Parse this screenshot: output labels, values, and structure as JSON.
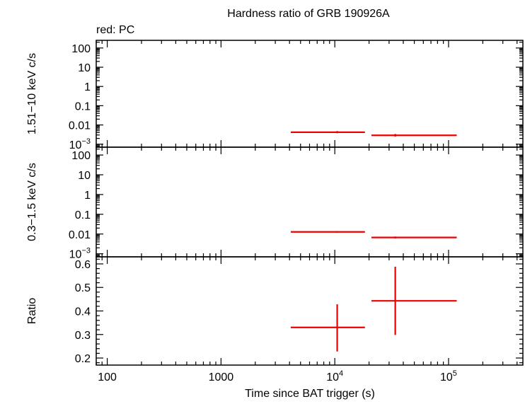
{
  "title": "Hardness ratio of GRB 190926A",
  "legend_note": "red: PC",
  "xlabel": "Time since BAT trigger (s)",
  "colors": {
    "data": "#ee0000",
    "axes": "#000000",
    "background": "#ffffff"
  },
  "chart_data": [
    {
      "type": "scatter",
      "panel": "top",
      "ylabel": "1.51−10 keV c/s",
      "xscale": "log",
      "yscale": "log",
      "xlim": [
        80,
        450000
      ],
      "ylim": [
        0.0007,
        250
      ],
      "y_ticks": [
        {
          "value": 100,
          "label": "100"
        },
        {
          "value": 10,
          "label": "10"
        },
        {
          "value": 1,
          "label": "1"
        },
        {
          "value": 0.1,
          "label": "0.1"
        },
        {
          "value": 0.01,
          "label": "0.01"
        },
        {
          "value": 0.001,
          "label": "10",
          "sup": "−3"
        }
      ],
      "series": [
        {
          "color": "#ee0000",
          "points": [
            {
              "x": 10500,
              "x_lo": 4100,
              "x_hi": 18400,
              "y": 0.0042,
              "y_lo": 0.0037,
              "y_hi": 0.0048
            },
            {
              "x": 34000,
              "x_lo": 21000,
              "x_hi": 118000,
              "y": 0.0029,
              "y_lo": 0.0025,
              "y_hi": 0.0034
            }
          ]
        }
      ]
    },
    {
      "type": "scatter",
      "panel": "middle",
      "ylabel": "0.3−1.5 keV c/s",
      "xscale": "log",
      "yscale": "log",
      "xlim": [
        80,
        450000
      ],
      "ylim": [
        0.0007,
        250
      ],
      "y_ticks": [
        {
          "value": 100,
          "label": "100"
        },
        {
          "value": 10,
          "label": "10"
        },
        {
          "value": 1,
          "label": "1"
        },
        {
          "value": 0.1,
          "label": "0.1"
        },
        {
          "value": 0.01,
          "label": "0.01"
        },
        {
          "value": 0.001,
          "label": "10",
          "sup": "−3"
        }
      ],
      "series": [
        {
          "color": "#ee0000",
          "points": [
            {
              "x": 10500,
              "x_lo": 4100,
              "x_hi": 18400,
              "y": 0.0128,
              "y_lo": 0.0118,
              "y_hi": 0.0139
            },
            {
              "x": 34000,
              "x_lo": 21000,
              "x_hi": 118000,
              "y": 0.0067,
              "y_lo": 0.006,
              "y_hi": 0.0075
            }
          ]
        }
      ]
    },
    {
      "type": "scatter",
      "panel": "bottom",
      "ylabel": "Ratio",
      "xscale": "log",
      "yscale": "linear",
      "xlim": [
        80,
        450000
      ],
      "ylim": [
        0.17,
        0.63
      ],
      "x_ticks": [
        {
          "value": 100,
          "label": "100"
        },
        {
          "value": 1000,
          "label": "1000"
        },
        {
          "value": 10000,
          "label": "10",
          "sup": "4"
        },
        {
          "value": 100000,
          "label": "10",
          "sup": "5"
        }
      ],
      "y_ticks": [
        {
          "value": 0.2,
          "label": "0.2"
        },
        {
          "value": 0.3,
          "label": "0.3"
        },
        {
          "value": 0.4,
          "label": "0.4"
        },
        {
          "value": 0.5,
          "label": "0.5"
        },
        {
          "value": 0.6,
          "label": "0.6"
        }
      ],
      "series": [
        {
          "color": "#ee0000",
          "points": [
            {
              "x": 10500,
              "x_lo": 4100,
              "x_hi": 18400,
              "y": 0.33,
              "y_lo": 0.228,
              "y_hi": 0.428
            },
            {
              "x": 34000,
              "x_lo": 21000,
              "x_hi": 118000,
              "y": 0.443,
              "y_lo": 0.298,
              "y_hi": 0.588
            }
          ]
        }
      ]
    }
  ]
}
